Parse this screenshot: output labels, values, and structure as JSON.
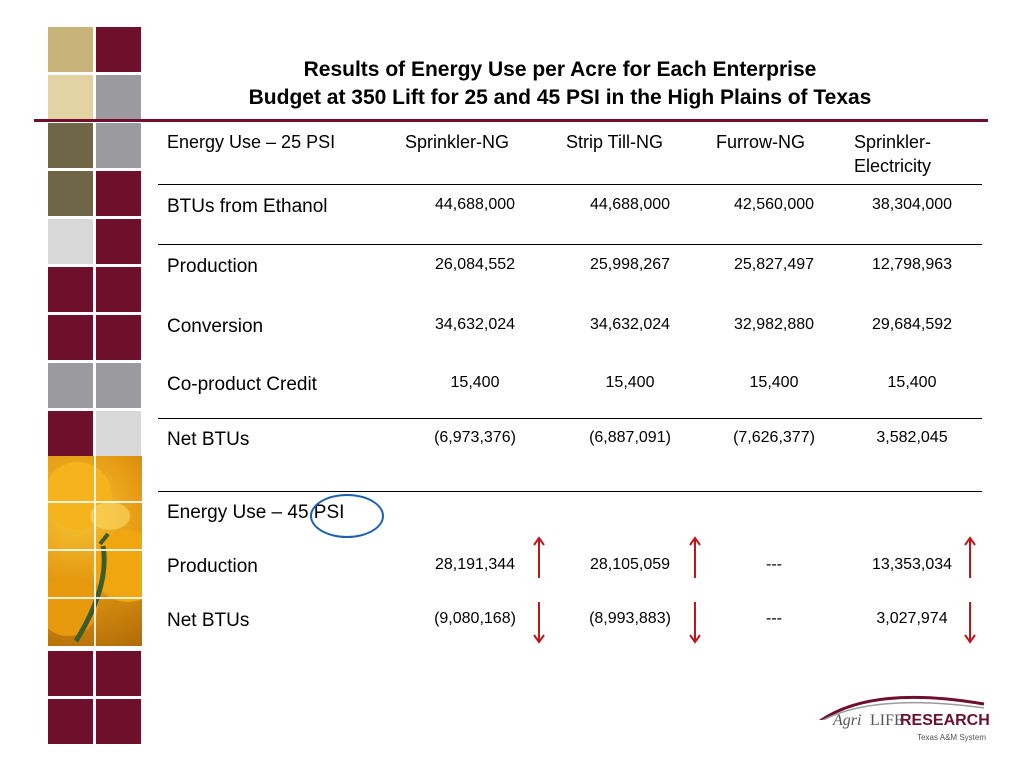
{
  "title": {
    "line1": "Results of Energy Use per Acre for Each Enterprise",
    "line2": "Budget at 350 Lift for 25 and 45 PSI in the High Plains of Texas"
  },
  "table": {
    "header": {
      "label": "Energy Use – 25 PSI",
      "cols": [
        "Sprinkler-NG",
        "Strip Till-NG",
        "Furrow-NG",
        "Sprinkler-",
        "Electricity"
      ]
    },
    "rows25": [
      {
        "label": "BTUs from Ethanol",
        "values": [
          "44,688,000",
          "44,688,000",
          "42,560,000",
          "38,304,000"
        ]
      },
      {
        "label": "Production",
        "values": [
          "26,084,552",
          "25,998,267",
          "25,827,497",
          "12,798,963"
        ]
      },
      {
        "label": "Conversion",
        "values": [
          "34,632,024",
          "34,632,024",
          "32,982,880",
          "29,684,592"
        ]
      },
      {
        "label": "Co-product Credit",
        "values": [
          "15,400",
          "15,400",
          "15,400",
          "15,400"
        ]
      },
      {
        "label": "Net BTUs",
        "values": [
          "(6,973,376)",
          "(6,887,091)",
          "(7,626,377)",
          "3,582,045"
        ]
      }
    ],
    "section45": {
      "label": "Energy Use – 45 PSI",
      "rows": [
        {
          "label": "Production",
          "values": [
            "28,191,344",
            "28,105,059",
            "---",
            "13,353,034"
          ]
        },
        {
          "label": "Net BTUs",
          "values": [
            "(9,080,168)",
            "(8,993,883)",
            "---",
            "3,027,974"
          ]
        }
      ]
    }
  },
  "logo": {
    "agri": "Agri",
    "life": "LIFE",
    "research": "RESEARCH",
    "system": "Texas A&M System"
  },
  "colors": {
    "maroon": "#6e0f2c",
    "tan": "#c8b47a",
    "lighttan": "#e2d3a4",
    "olive": "#6f6547",
    "gray": "#9b9a9f",
    "lightgray": "#d8d8d8",
    "arrow": "#c0161b",
    "circle": "#1e5fb0"
  },
  "icons": [
    "up-arrow-icon",
    "down-arrow-icon",
    "highlight-circle"
  ]
}
